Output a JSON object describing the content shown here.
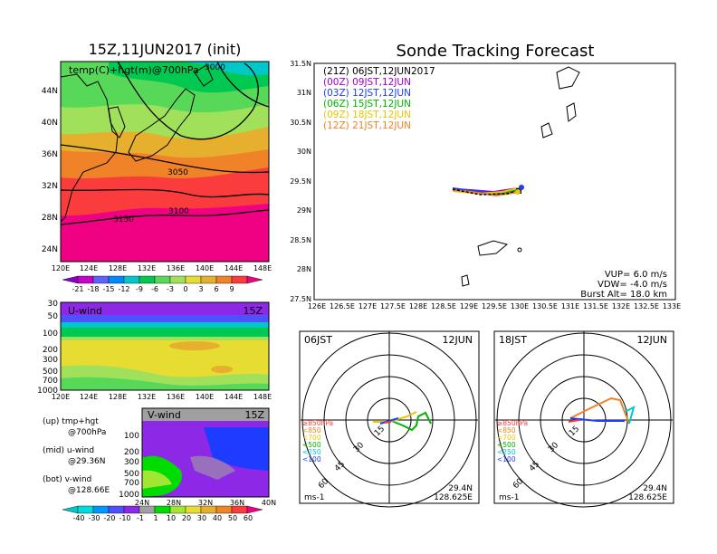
{
  "left_map": {
    "title": "15Z,11JUN2017 (init)",
    "label": "temp(C)+hgt(m)@700hPa",
    "lat_ticks": [
      "44N",
      "40N",
      "36N",
      "32N",
      "28N",
      "24N"
    ],
    "lon_ticks": [
      "120E",
      "124E",
      "128E",
      "132E",
      "136E",
      "140E",
      "144E",
      "148E"
    ],
    "contour_labels": [
      "3000",
      "3050",
      "3100",
      "3150"
    ],
    "colorbar_labels": [
      "-21",
      "-18",
      "-15",
      "-12",
      "-9",
      "-6",
      "-3",
      "0",
      "3",
      "6",
      "9"
    ],
    "colors": [
      "#8a00c8",
      "#c800c8",
      "#6060ff",
      "#0088ff",
      "#00c8c8",
      "#00c850",
      "#58d858",
      "#a0e05a",
      "#e6dc32",
      "#e6af2d",
      "#f08228",
      "#fa3c3c",
      "#f00082"
    ]
  },
  "uwind": {
    "label": "U-wind",
    "time": "15Z",
    "p_ticks": [
      "30",
      "50",
      "100",
      "200",
      "300",
      "500",
      "700",
      "1000"
    ],
    "lon_ticks": [
      "120E",
      "124E",
      "128E",
      "132E",
      "136E",
      "140E",
      "144E",
      "148E"
    ]
  },
  "vwind": {
    "label": "V-wind",
    "time": "15Z",
    "p_ticks": [
      "100",
      "200",
      "300",
      "500",
      "700",
      "1000"
    ],
    "lat_ticks": [
      "24N",
      "28N",
      "32N",
      "36N",
      "40N"
    ],
    "colorbar_labels": [
      "-40",
      "-30",
      "-20",
      "-10",
      "-1",
      "1",
      "10",
      "20",
      "30",
      "40",
      "50",
      "60"
    ],
    "colors": [
      "#00c8c8",
      "#00dcdc",
      "#0096ff",
      "#5050ff",
      "#8c28e6",
      "#a0a0a0",
      "#00dc00",
      "#a0e632",
      "#e6dc32",
      "#e6af2d",
      "#f08228",
      "#fa3c3c",
      "#f00082"
    ]
  },
  "legend_notes": [
    "(up) tmp+hgt",
    "@700hPa",
    "(mid) u-wind",
    "@29.36N",
    "(bot) v-wind",
    "@128.66E"
  ],
  "track_map": {
    "title": "Sonde Tracking Forecast",
    "lat_ticks": [
      "31.5N",
      "31N",
      "30.5N",
      "30N",
      "29.5N",
      "29N",
      "28.5N",
      "28N",
      "27.5N"
    ],
    "lon_ticks": [
      "126E",
      "126.5E",
      "127E",
      "127.5E",
      "128E",
      "128.5E",
      "129E",
      "129.5E",
      "130E",
      "130.5E",
      "131E",
      "131.5E",
      "132E",
      "132.5E",
      "133E"
    ],
    "launches": [
      {
        "text": "(21Z)  06JST,12JUN2017",
        "color": "#000000"
      },
      {
        "text": "(00Z)  09JST,12JUN",
        "color": "#a000c8"
      },
      {
        "text": "(03Z)  12JST,12JUN",
        "color": "#1e3cff"
      },
      {
        "text": "(06Z)  15JST,12JUN",
        "color": "#00b400"
      },
      {
        "text": "(09Z)  18JST,12JUN",
        "color": "#e6c800"
      },
      {
        "text": "(12Z)  21JST,12JUN",
        "color": "#f08228"
      }
    ],
    "params": [
      "VUP=  6.0  m/s",
      "VDW= -4.0  m/s",
      "Burst Alt=  18.0  km"
    ]
  },
  "hodo_06": {
    "time": "06JST",
    "date": "12JUN",
    "lat": "29.4N",
    "lon": "128.625E",
    "unit": "ms-1",
    "ring_labels": [
      "15",
      "30",
      "45",
      "60"
    ],
    "levels": [
      {
        "text": "≥850hPa",
        "color": "#fa3c3c"
      },
      {
        "text": "<850",
        "color": "#f08228"
      },
      {
        "text": "<700",
        "color": "#e6c800"
      },
      {
        "text": "<500",
        "color": "#00b400"
      },
      {
        "text": "<250",
        "color": "#00c8c8"
      },
      {
        "text": "<100",
        "color": "#1e3cff"
      }
    ]
  },
  "hodo_18": {
    "time": "18JST",
    "date": "12JUN",
    "lat": "29.4N",
    "lon": "128.625E",
    "unit": "ms-1",
    "ring_labels": [
      "15",
      "30",
      "45",
      "60"
    ],
    "levels": [
      {
        "text": "≥850hPa",
        "color": "#fa3c3c"
      },
      {
        "text": "<850",
        "color": "#f08228"
      },
      {
        "text": "<700",
        "color": "#e6c800"
      },
      {
        "text": "<500",
        "color": "#00b400"
      },
      {
        "text": "<250",
        "color": "#00c8c8"
      },
      {
        "text": "<100",
        "color": "#1e3cff"
      }
    ]
  }
}
